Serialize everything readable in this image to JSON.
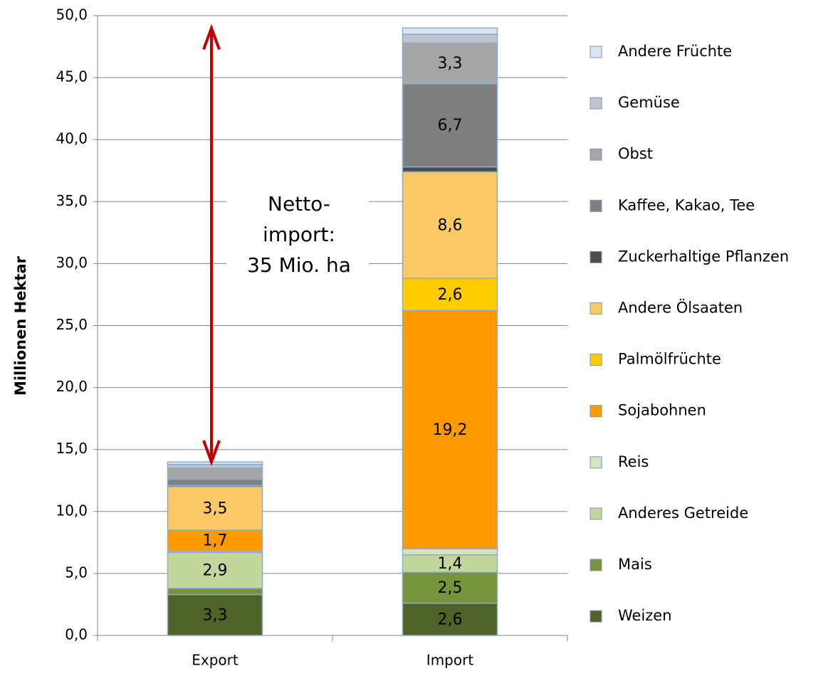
{
  "chart_data": {
    "type": "stacked_bar",
    "y_axis_label": "Millionen Hektar",
    "categories": [
      "Export",
      "Import"
    ],
    "ylim": [
      0,
      50
    ],
    "yticks": [
      {
        "value": 0,
        "label": "0,0"
      },
      {
        "value": 5,
        "label": "5,0"
      },
      {
        "value": 10,
        "label": "10,0"
      },
      {
        "value": 15,
        "label": "15,0"
      },
      {
        "value": 20,
        "label": "20,0"
      },
      {
        "value": 25,
        "label": "25,0"
      },
      {
        "value": 30,
        "label": "30,0"
      },
      {
        "value": 35,
        "label": "35,0"
      },
      {
        "value": 40,
        "label": "40,0"
      },
      {
        "value": 45,
        "label": "45,0"
      },
      {
        "value": 50,
        "label": "50,0"
      }
    ],
    "grid": true,
    "legend": "right",
    "annotation": [
      "Netto-",
      "import:",
      "35 Mio. ha"
    ],
    "series": [
      {
        "name": "Weizen",
        "color": "#4f6228",
        "values": [
          3.3,
          2.6
        ],
        "value_labels": [
          "3,3",
          "2,6"
        ]
      },
      {
        "name": "Mais",
        "color": "#77933c",
        "values": [
          0.5,
          2.5
        ],
        "value_labels": [
          null,
          "2,5"
        ]
      },
      {
        "name": "Anderes Getreide",
        "color": "#c3d69b",
        "values": [
          2.9,
          1.4
        ],
        "value_labels": [
          "2,9",
          "1,4"
        ]
      },
      {
        "name": "Reis",
        "color": "#d7e4bd",
        "values": [
          0.1,
          0.5
        ],
        "value_labels": [
          null,
          null
        ]
      },
      {
        "name": "Sojabohnen",
        "color": "#ff9900",
        "values": [
          1.7,
          19.2
        ],
        "value_labels": [
          "1,7",
          "19,2"
        ]
      },
      {
        "name": "Palmölfrüchte",
        "color": "#ffcc00",
        "values": [
          0,
          2.6
        ],
        "value_labels": [
          null,
          "2,6"
        ]
      },
      {
        "name": "Andere Ölsaaten",
        "color": "#fac864",
        "values": [
          3.5,
          8.6
        ],
        "value_labels": [
          "3,5",
          "8,6"
        ]
      },
      {
        "name": "Zuckerhaltige Pflanzen",
        "color": "#4d4d4d",
        "values": [
          0.1,
          0.4
        ],
        "value_labels": [
          null,
          null
        ]
      },
      {
        "name": "Kaffee, Kakao, Tee",
        "color": "#7f7f7f",
        "values": [
          0.5,
          6.7
        ],
        "value_labels": [
          null,
          "6,7"
        ]
      },
      {
        "name": "Obst",
        "color": "#a6a6a6",
        "values": [
          0.9,
          3.3
        ],
        "value_labels": [
          null,
          "3,3"
        ]
      },
      {
        "name": "Gemüse",
        "color": "#c0c4cc",
        "values": [
          0.3,
          0.7
        ],
        "value_labels": [
          null,
          null
        ]
      },
      {
        "name": "Andere Früchte",
        "color": "#dce6f2",
        "values": [
          0.2,
          0.5
        ],
        "value_labels": [
          null,
          null
        ]
      }
    ]
  }
}
